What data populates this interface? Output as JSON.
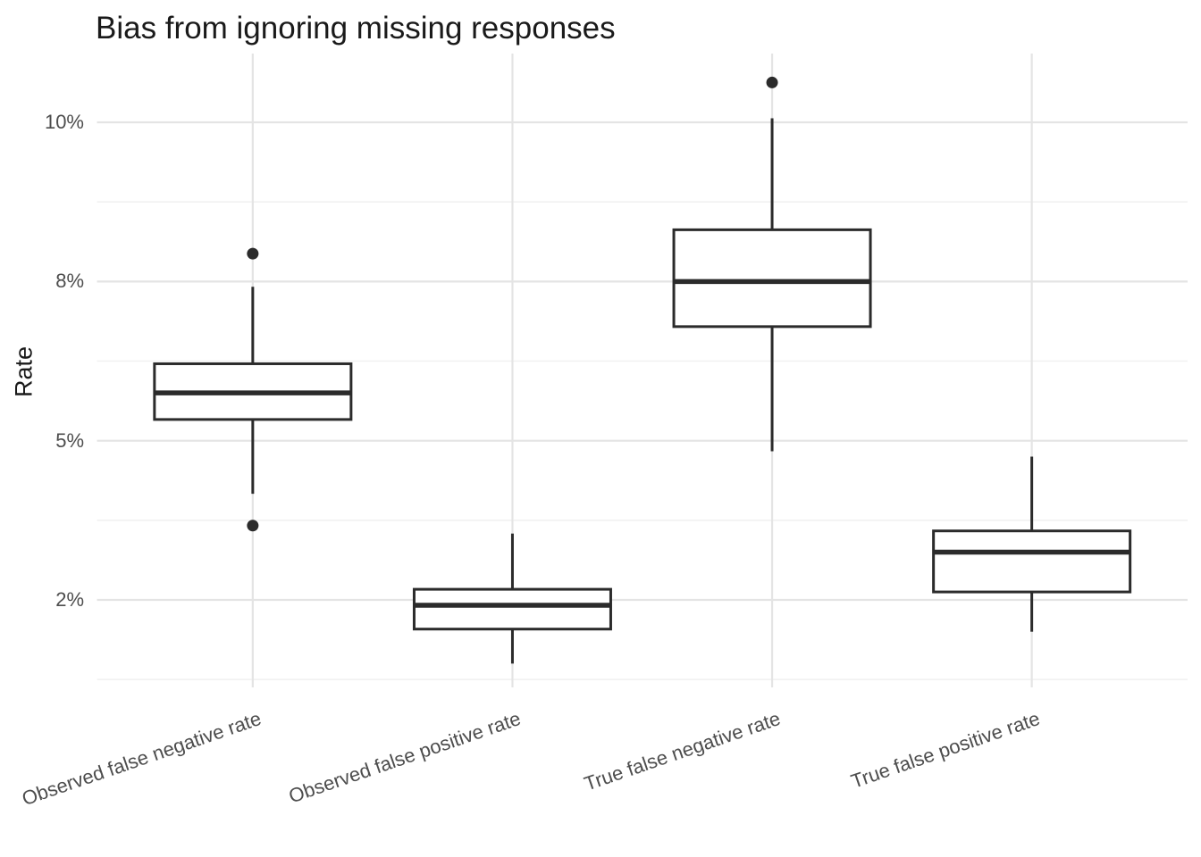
{
  "chart_data": {
    "type": "boxplot",
    "title": "Bias from ignoring missing responses",
    "xlabel": "",
    "ylabel": "Rate",
    "unit": "percent",
    "legend": "none",
    "grid": "horizontal major + minor and one vertical gridline per category; no axis lines or tick marks (minimal ggplot-style theme)",
    "y_axis_note": "labeled breaks 2%, 5%, 8%, 10% are rendered equally spaced; minor gridlines fall midway between breaks (0.5%, 3.5%, 6.5%, 9%)",
    "x_tick_label_angle_deg": -19,
    "y_ticks": [
      {
        "label": "2%",
        "value": 2
      },
      {
        "label": "5%",
        "value": 5
      },
      {
        "label": "8%",
        "value": 8
      },
      {
        "label": "10%",
        "value": 10
      }
    ],
    "y_minor_values": [
      0.5,
      3.5,
      6.5,
      9
    ],
    "categories": [
      "Observed false negative rate",
      "Observed false positive rate",
      "True false negative rate",
      "True false positive rate"
    ],
    "series": [
      {
        "category": "Observed false negative rate",
        "whisker_low": 4.0,
        "q1": 5.4,
        "median": 5.9,
        "q3": 6.45,
        "whisker_high": 7.9,
        "outliers": [
          8.35,
          3.4
        ]
      },
      {
        "category": "Observed false positive rate",
        "whisker_low": 0.8,
        "q1": 1.45,
        "median": 1.9,
        "q3": 2.2,
        "whisker_high": 3.25,
        "outliers": []
      },
      {
        "category": "True false negative rate",
        "whisker_low": 4.8,
        "q1": 7.15,
        "median": 8.0,
        "q3": 8.65,
        "whisker_high": 10.05,
        "outliers": [
          10.5
        ]
      },
      {
        "category": "True false positive rate",
        "whisker_low": 1.4,
        "q1": 2.15,
        "median": 2.9,
        "q3": 3.3,
        "whisker_high": 4.7,
        "outliers": []
      }
    ],
    "colors": {
      "box_stroke": "#2b2b2b",
      "box_fill": "#ffffff",
      "outlier_fill": "#2b2b2b",
      "grid_major": "#e4e4e4",
      "grid_minor": "#f1f1f1",
      "axis_text": "#4d4d4d",
      "title_text": "#1a1a1a",
      "background": "#ffffff"
    }
  }
}
